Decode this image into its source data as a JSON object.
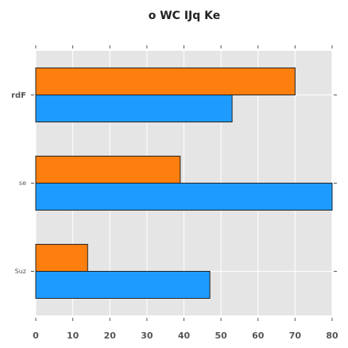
{
  "chart_data": {
    "type": "bar",
    "orientation": "horizontal",
    "title": "o WC IJq Ke",
    "categories": [
      "rdF",
      "se",
      "Suz"
    ],
    "series": [
      {
        "color": "#ff7f0e",
        "values": [
          70,
          39,
          14
        ]
      },
      {
        "color": "#1e9bff",
        "values": [
          53,
          80,
          47
        ]
      }
    ],
    "xlim": [
      0,
      80
    ],
    "xticks": [
      "0",
      "10",
      "20",
      "30",
      "40",
      "50",
      "60",
      "70",
      "80"
    ],
    "grid": true,
    "background": "#e5e5e5"
  }
}
